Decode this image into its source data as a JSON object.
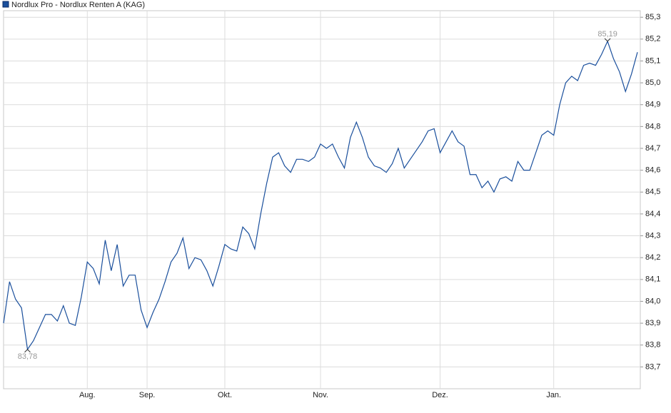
{
  "chart_data": {
    "type": "line",
    "series": [
      {
        "name": "Nordlux Pro - Nordlux Renten A (KAG)",
        "color": "#1a4f9c",
        "values": [
          83.9,
          84.09,
          84.01,
          83.97,
          83.78,
          83.82,
          83.88,
          83.94,
          83.94,
          83.91,
          83.98,
          83.9,
          83.89,
          84.02,
          84.18,
          84.15,
          84.08,
          84.28,
          84.14,
          84.26,
          84.07,
          84.12,
          84.12,
          83.96,
          83.88,
          83.95,
          84.01,
          84.09,
          84.18,
          84.22,
          84.29,
          84.15,
          84.2,
          84.19,
          84.14,
          84.07,
          84.16,
          84.26,
          84.24,
          84.23,
          84.34,
          84.31,
          84.24,
          84.4,
          84.54,
          84.66,
          84.68,
          84.62,
          84.59,
          84.65,
          84.65,
          84.64,
          84.66,
          84.72,
          84.7,
          84.72,
          84.66,
          84.61,
          84.75,
          84.82,
          84.75,
          84.66,
          84.62,
          84.61,
          84.59,
          84.63,
          84.7,
          84.61,
          84.65,
          84.69,
          84.73,
          84.78,
          84.79,
          84.68,
          84.73,
          84.78,
          84.73,
          84.71,
          84.58,
          84.58,
          84.52,
          84.55,
          84.5,
          84.56,
          84.57,
          84.55,
          84.64,
          84.6,
          84.6,
          84.68,
          84.76,
          84.78,
          84.76,
          84.9,
          85.0,
          85.03,
          85.01,
          85.08,
          85.09,
          85.08,
          85.13,
          85.19,
          85.11,
          85.05,
          84.96,
          85.04,
          85.14
        ]
      }
    ],
    "categories": [
      null,
      null,
      null,
      null,
      null,
      null,
      null,
      null,
      null,
      null,
      null,
      null,
      null,
      null,
      "Aug.",
      null,
      null,
      null,
      null,
      null,
      null,
      null,
      null,
      null,
      "Sep.",
      null,
      null,
      null,
      null,
      null,
      null,
      null,
      null,
      null,
      null,
      null,
      null,
      "Okt.",
      null,
      null,
      null,
      null,
      null,
      null,
      null,
      null,
      null,
      null,
      null,
      null,
      null,
      null,
      null,
      "Nov.",
      null,
      null,
      null,
      null,
      null,
      null,
      null,
      null,
      null,
      null,
      null,
      null,
      null,
      null,
      null,
      null,
      null,
      null,
      null,
      "Dez.",
      null,
      null,
      null,
      null,
      null,
      null,
      null,
      null,
      null,
      null,
      null,
      null,
      null,
      null,
      null,
      null,
      null,
      null,
      "Jan.",
      null,
      null,
      null,
      null,
      null,
      null,
      null,
      null,
      null,
      null,
      null,
      null,
      null,
      null
    ],
    "ylim": [
      83.6,
      85.33
    ],
    "yticks": [
      {
        "value": 83.7,
        "label": "83,7"
      },
      {
        "value": 83.8,
        "label": "83,8"
      },
      {
        "value": 83.9,
        "label": "83,9"
      },
      {
        "value": 84.0,
        "label": "84,0"
      },
      {
        "value": 84.1,
        "label": "84,1"
      },
      {
        "value": 84.2,
        "label": "84,2"
      },
      {
        "value": 84.3,
        "label": "84,3"
      },
      {
        "value": 84.4,
        "label": "84,4"
      },
      {
        "value": 84.5,
        "label": "84,5"
      },
      {
        "value": 84.6,
        "label": "84,6"
      },
      {
        "value": 84.7,
        "label": "84,7"
      },
      {
        "value": 84.8,
        "label": "84,8"
      },
      {
        "value": 84.9,
        "label": "84,9"
      },
      {
        "value": 85.0,
        "label": "85,0"
      },
      {
        "value": 85.1,
        "label": "85,1"
      },
      {
        "value": 85.2,
        "label": "85,2"
      },
      {
        "value": 85.3,
        "label": "85,3"
      }
    ],
    "annotations": [
      {
        "label": "83,78",
        "value": 83.78
      },
      {
        "label": "85,19",
        "value": 85.19
      }
    ],
    "grid": true,
    "legend": "top-left"
  }
}
